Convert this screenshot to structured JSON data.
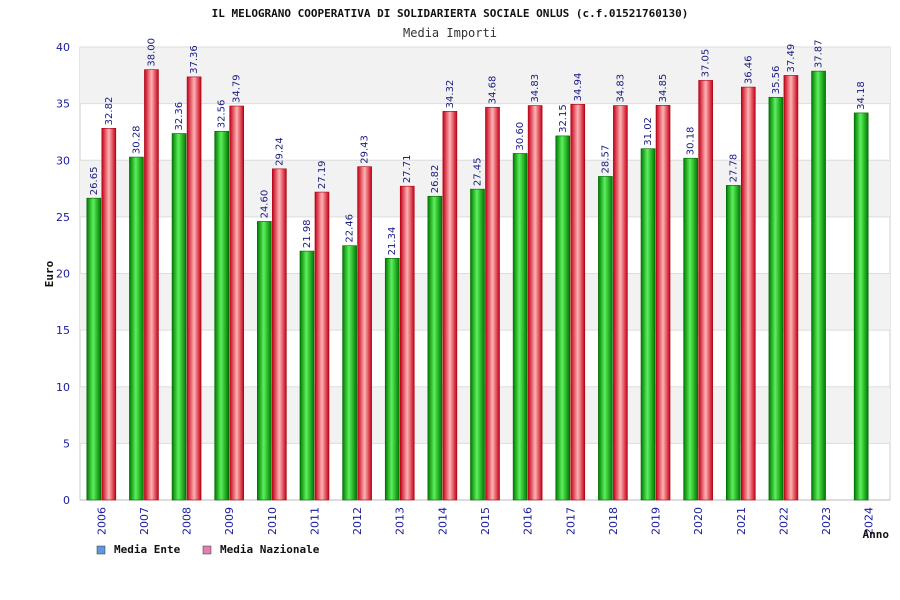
{
  "chart_data": {
    "type": "bar",
    "title": "IL MELOGRANO COOPERATIVA DI SOLIDARIERTA SOCIALE ONLUS (c.f.01521760130)",
    "subtitle": "Media Importi",
    "xlabel": "Anno",
    "ylabel": "Euro",
    "ylim": [
      0,
      40
    ],
    "yticks": [
      0,
      5,
      10,
      15,
      20,
      25,
      30,
      35,
      40
    ],
    "categories": [
      "2006",
      "2007",
      "2008",
      "2009",
      "2010",
      "2011",
      "2012",
      "2013",
      "2014",
      "2015",
      "2016",
      "2017",
      "2018",
      "2019",
      "2020",
      "2021",
      "2022",
      "2023",
      "2024"
    ],
    "series": [
      {
        "name": "Media Ente",
        "values": [
          26.65,
          30.28,
          32.36,
          32.56,
          24.6,
          21.98,
          22.46,
          21.34,
          26.82,
          27.45,
          30.6,
          32.15,
          28.57,
          31.02,
          30.18,
          27.78,
          35.56,
          37.87,
          34.18
        ],
        "labels": [
          "26.65",
          "30.28",
          "32.36",
          "32.56",
          "24.60",
          "21.98",
          "22.46",
          "21.34",
          "26.82",
          "27.45",
          "30.60",
          "32.15",
          "28.57",
          "31.02",
          "30.18",
          "27.78",
          "35.56",
          "37.87",
          "34.18"
        ]
      },
      {
        "name": "Media Nazionale",
        "values": [
          32.82,
          38.0,
          37.36,
          34.79,
          29.24,
          27.19,
          29.43,
          27.71,
          34.32,
          34.68,
          34.83,
          34.94,
          34.83,
          34.85,
          37.05,
          36.46,
          37.49,
          null,
          null
        ],
        "labels": [
          "32.82",
          "38.00",
          "37.36",
          "34.79",
          "29.24",
          "27.19",
          "29.43",
          "27.71",
          "34.32",
          "34.68",
          "34.83",
          "34.94",
          "34.83",
          "34.85",
          "37.05",
          "36.46",
          "37.49",
          null,
          null
        ]
      }
    ],
    "legend": [
      {
        "name": "Media Ente",
        "color": "#5a9bdc"
      },
      {
        "name": "Media Nazionale",
        "color": "#e080b0"
      }
    ],
    "legend_position": "bottom-left",
    "grid": true
  },
  "colors": {
    "ente_dark": "#008800",
    "ente_light": "#44ee44",
    "naz_dark": "#cc1122",
    "naz_light": "#ffaaaa",
    "band": "#f2f2f2"
  }
}
